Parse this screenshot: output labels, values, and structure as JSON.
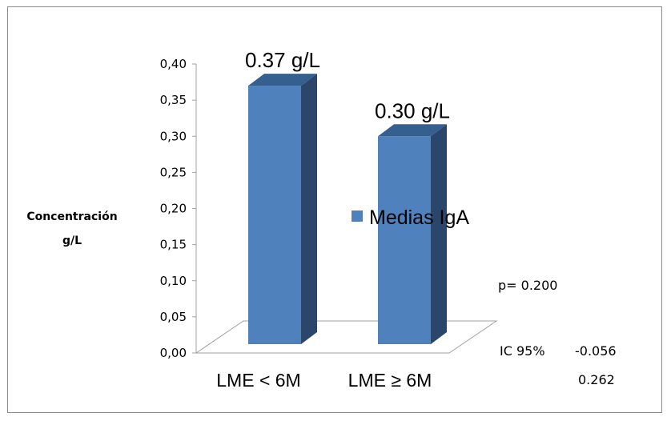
{
  "chart_data": {
    "type": "bar",
    "categories": [
      "LME < 6M",
      "LME ≥ 6M"
    ],
    "series": [
      {
        "name": "Medias IgA",
        "values": [
          0.37,
          0.3
        ],
        "color": "#4f81bd"
      }
    ],
    "data_labels": [
      "0.37 g/L",
      "0.30 g/L"
    ],
    "ylabel": [
      "Concentración",
      "g/L"
    ],
    "yticks": [
      "0,00",
      "0,05",
      "0,10",
      "0,15",
      "0,20",
      "0,25",
      "0,30",
      "0,35",
      "0,40"
    ],
    "ylim": [
      0,
      0.4
    ],
    "legend_position": "right",
    "grid": false,
    "style": "3d-column"
  },
  "annotations": {
    "p_value": "p= 0.200",
    "ci_label": "IC 95%",
    "ci_low": "-0.056",
    "ci_high": "0.262"
  }
}
